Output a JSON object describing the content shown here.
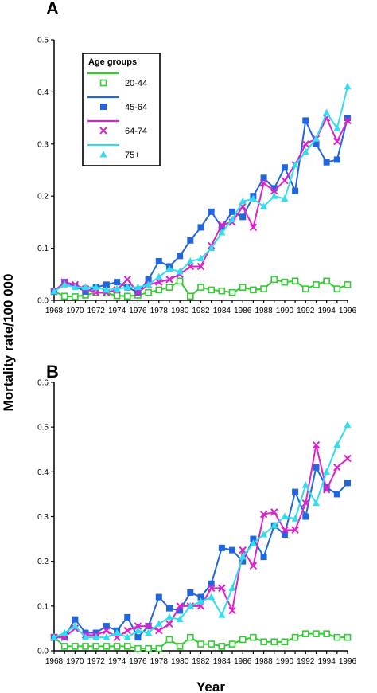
{
  "figure": {
    "ylabel": "Mortality rate/100 000",
    "xlabel": "Year",
    "colors": {
      "20-44": "#33cc33",
      "45-64": "#2266dd",
      "64-74": "#dd22cc",
      "75+": "#33ddee"
    },
    "legend": {
      "title": "Age groups",
      "entries": [
        {
          "label": "20-44",
          "marker": "open-square"
        },
        {
          "label": "45-64",
          "marker": "filled-square"
        },
        {
          "label": "64-74",
          "marker": "cross"
        },
        {
          "label": "75+",
          "marker": "triangle"
        }
      ]
    }
  },
  "chart_data": [
    {
      "panel": "A",
      "type": "line",
      "xlabel": "",
      "ylabel": "Mortality rate/100 000",
      "xlim": [
        1968,
        1996
      ],
      "ylim": [
        0,
        0.5
      ],
      "xticks": [
        "1968",
        "1970",
        "1972",
        "1974",
        "1976",
        "1978",
        "1980",
        "1982",
        "1984",
        "1986",
        "1988",
        "1990",
        "1992",
        "1994",
        "1996"
      ],
      "yticks": [
        "0.0",
        "0.1",
        "0.2",
        "0.3",
        "0.4",
        "0.5"
      ],
      "legend": "top-left",
      "x": [
        1968,
        1969,
        1970,
        1971,
        1972,
        1973,
        1974,
        1975,
        1976,
        1977,
        1978,
        1979,
        1980,
        1981,
        1982,
        1983,
        1984,
        1985,
        1986,
        1987,
        1988,
        1989,
        1990,
        1991,
        1992,
        1993,
        1994,
        1995,
        1996
      ],
      "series": [
        {
          "name": "20-44",
          "values": [
            0.017,
            0.008,
            0.007,
            0.01,
            0.015,
            0.014,
            0.009,
            0.008,
            0.01,
            0.015,
            0.02,
            0.025,
            0.037,
            0.008,
            0.025,
            0.02,
            0.018,
            0.015,
            0.025,
            0.02,
            0.022,
            0.04,
            0.035,
            0.037,
            0.022,
            0.03,
            0.037,
            0.022,
            0.03
          ]
        },
        {
          "name": "45-64",
          "values": [
            0.017,
            0.035,
            0.027,
            0.017,
            0.025,
            0.03,
            0.035,
            0.025,
            0.015,
            0.04,
            0.075,
            0.065,
            0.085,
            0.115,
            0.14,
            0.17,
            0.14,
            0.17,
            0.16,
            0.2,
            0.235,
            0.215,
            0.255,
            0.21,
            0.345,
            0.3,
            0.265,
            0.27,
            0.35
          ]
        },
        {
          "name": "64-74",
          "values": [
            0.017,
            0.035,
            0.03,
            0.022,
            0.015,
            0.015,
            0.02,
            0.04,
            0.015,
            0.03,
            0.035,
            0.04,
            0.05,
            0.065,
            0.065,
            0.105,
            0.145,
            0.15,
            0.18,
            0.14,
            0.225,
            0.21,
            0.23,
            0.26,
            0.3,
            0.31,
            0.35,
            0.305,
            0.345
          ]
        },
        {
          "name": "75+",
          "values": [
            0.017,
            0.03,
            0.025,
            0.025,
            0.025,
            0.02,
            0.022,
            0.025,
            0.025,
            0.03,
            0.045,
            0.06,
            0.055,
            0.075,
            0.08,
            0.1,
            0.13,
            0.155,
            0.19,
            0.195,
            0.18,
            0.2,
            0.195,
            0.26,
            0.285,
            0.31,
            0.36,
            0.33,
            0.41
          ]
        }
      ]
    },
    {
      "panel": "B",
      "type": "line",
      "xlabel": "Year",
      "ylabel": "Mortality rate/100 000",
      "xlim": [
        1968,
        1996
      ],
      "ylim": [
        0,
        0.6
      ],
      "xticks": [
        "1968",
        "1970",
        "1972",
        "1974",
        "1976",
        "1978",
        "1980",
        "1982",
        "1984",
        "1986",
        "1988",
        "1990",
        "1992",
        "1994",
        "1996"
      ],
      "yticks": [
        "0.0",
        "0.1",
        "0.2",
        "0.3",
        "0.4",
        "0.5",
        "0.6"
      ],
      "x": [
        1968,
        1969,
        1970,
        1971,
        1972,
        1973,
        1974,
        1975,
        1976,
        1977,
        1978,
        1979,
        1980,
        1981,
        1982,
        1983,
        1984,
        1985,
        1986,
        1987,
        1988,
        1989,
        1990,
        1991,
        1992,
        1993,
        1994,
        1995,
        1996
      ],
      "series": [
        {
          "name": "20-44",
          "values": [
            0.03,
            0.01,
            0.01,
            0.01,
            0.01,
            0.01,
            0.01,
            0.01,
            0.005,
            0.005,
            0.005,
            0.025,
            0.01,
            0.03,
            0.015,
            0.015,
            0.01,
            0.015,
            0.025,
            0.03,
            0.02,
            0.02,
            0.02,
            0.03,
            0.038,
            0.038,
            0.038,
            0.03,
            0.03
          ]
        },
        {
          "name": "45-64",
          "values": [
            0.03,
            0.03,
            0.07,
            0.04,
            0.04,
            0.055,
            0.045,
            0.075,
            0.03,
            0.055,
            0.12,
            0.095,
            0.09,
            0.13,
            0.12,
            0.15,
            0.23,
            0.225,
            0.2,
            0.25,
            0.21,
            0.28,
            0.26,
            0.355,
            0.3,
            0.41,
            0.365,
            0.35,
            0.375
          ]
        },
        {
          "name": "64-74",
          "values": [
            0.03,
            0.03,
            0.05,
            0.035,
            0.035,
            0.045,
            0.03,
            0.045,
            0.055,
            0.055,
            0.045,
            0.06,
            0.1,
            0.1,
            0.1,
            0.14,
            0.14,
            0.09,
            0.225,
            0.19,
            0.305,
            0.31,
            0.27,
            0.27,
            0.33,
            0.46,
            0.36,
            0.41,
            0.43
          ]
        },
        {
          "name": "75+",
          "values": [
            0.03,
            0.04,
            0.055,
            0.03,
            0.03,
            0.03,
            0.04,
            0.03,
            0.045,
            0.04,
            0.06,
            0.075,
            0.07,
            0.1,
            0.11,
            0.12,
            0.08,
            0.14,
            0.21,
            0.24,
            0.26,
            0.28,
            0.3,
            0.295,
            0.37,
            0.33,
            0.4,
            0.46,
            0.505
          ]
        }
      ]
    }
  ]
}
